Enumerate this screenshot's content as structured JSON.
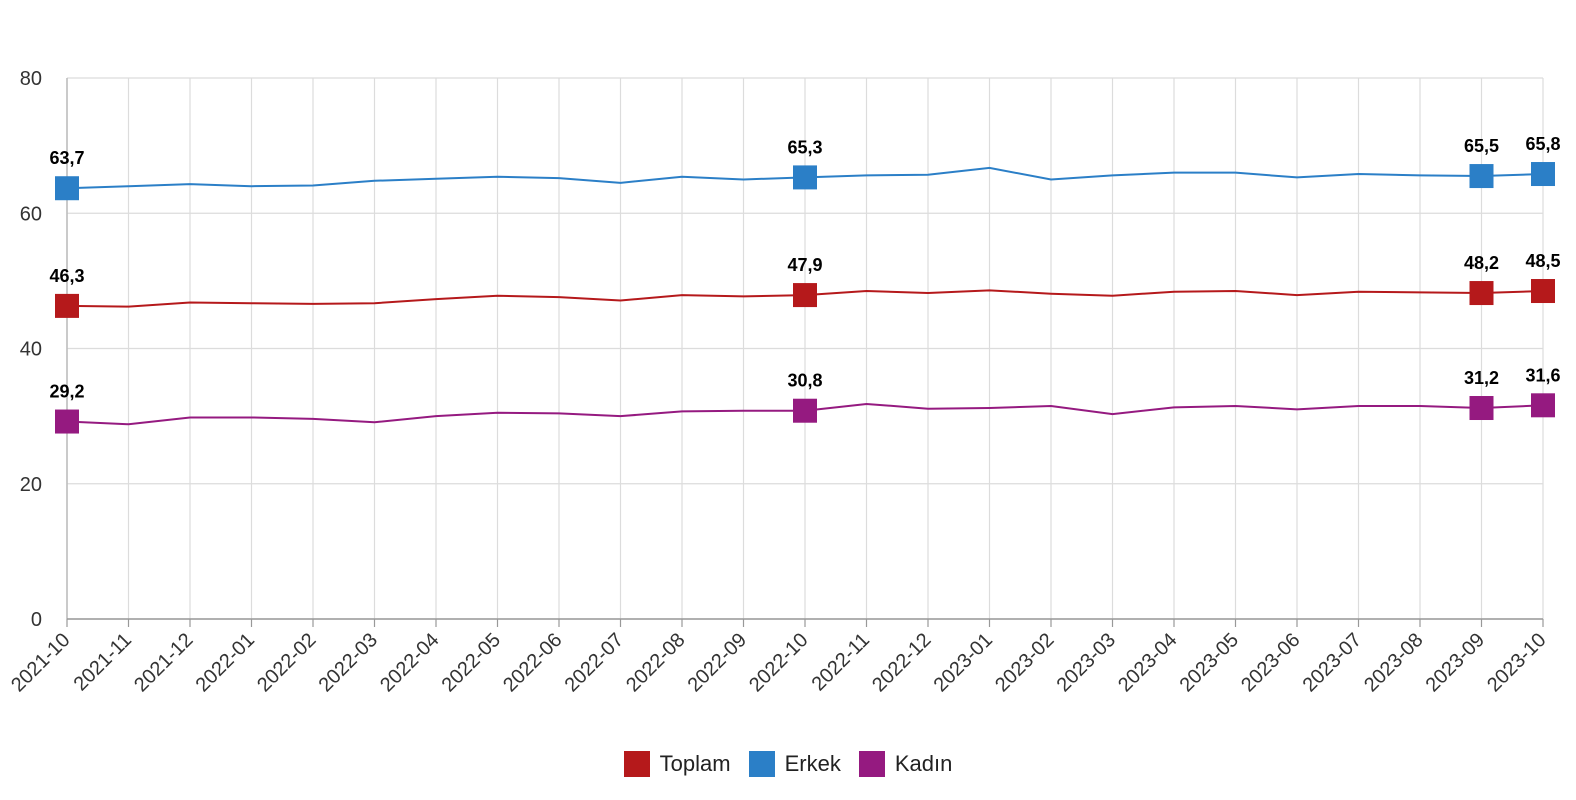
{
  "chart_data": {
    "type": "line",
    "title": "",
    "xlabel": "",
    "ylabel": "",
    "ylim": [
      0,
      80
    ],
    "yticks": [
      "0",
      "20",
      "40",
      "60",
      "80"
    ],
    "grid": true,
    "legend_position": "bottom-center",
    "categories": [
      "2021-10",
      "2021-11",
      "2021-12",
      "2022-01",
      "2022-02",
      "2022-03",
      "2022-04",
      "2022-05",
      "2022-06",
      "2022-07",
      "2022-08",
      "2022-09",
      "2022-10",
      "2022-11",
      "2022-12",
      "2023-01",
      "2023-02",
      "2023-03",
      "2023-04",
      "2023-05",
      "2023-06",
      "2023-07",
      "2023-08",
      "2023-09",
      "2023-10"
    ],
    "series": [
      {
        "name": "Toplam",
        "color": "#b5191b",
        "values": [
          46.3,
          46.2,
          46.8,
          46.7,
          46.6,
          46.7,
          47.3,
          47.8,
          47.6,
          47.1,
          47.9,
          47.7,
          47.9,
          48.5,
          48.2,
          48.6,
          48.1,
          47.8,
          48.4,
          48.5,
          47.9,
          48.4,
          48.3,
          48.2,
          48.5
        ],
        "markers": [
          {
            "index": 0,
            "label": "46,3"
          },
          {
            "index": 12,
            "label": "47,9"
          },
          {
            "index": 23,
            "label": "48,2"
          },
          {
            "index": 24,
            "label": "48,5"
          }
        ]
      },
      {
        "name": "Erkek",
        "color": "#2b7fc7",
        "values": [
          63.7,
          64.0,
          64.3,
          64.0,
          64.1,
          64.8,
          65.1,
          65.4,
          65.2,
          64.5,
          65.4,
          65.0,
          65.3,
          65.6,
          65.7,
          66.7,
          65.0,
          65.6,
          66.0,
          66.0,
          65.3,
          65.8,
          65.6,
          65.5,
          65.8
        ],
        "markers": [
          {
            "index": 0,
            "label": "63,7"
          },
          {
            "index": 12,
            "label": "65,3"
          },
          {
            "index": 23,
            "label": "65,5"
          },
          {
            "index": 24,
            "label": "65,8"
          }
        ]
      },
      {
        "name": "Kadın",
        "color": "#951a80",
        "values": [
          29.2,
          28.8,
          29.8,
          29.8,
          29.6,
          29.1,
          30.0,
          30.5,
          30.4,
          30.0,
          30.7,
          30.8,
          30.8,
          31.8,
          31.1,
          31.2,
          31.5,
          30.3,
          31.3,
          31.5,
          31.0,
          31.5,
          31.5,
          31.2,
          31.6
        ],
        "markers": [
          {
            "index": 0,
            "label": "29,2"
          },
          {
            "index": 12,
            "label": "30,8"
          },
          {
            "index": 23,
            "label": "31,2"
          },
          {
            "index": 24,
            "label": "31,6"
          }
        ]
      }
    ]
  }
}
